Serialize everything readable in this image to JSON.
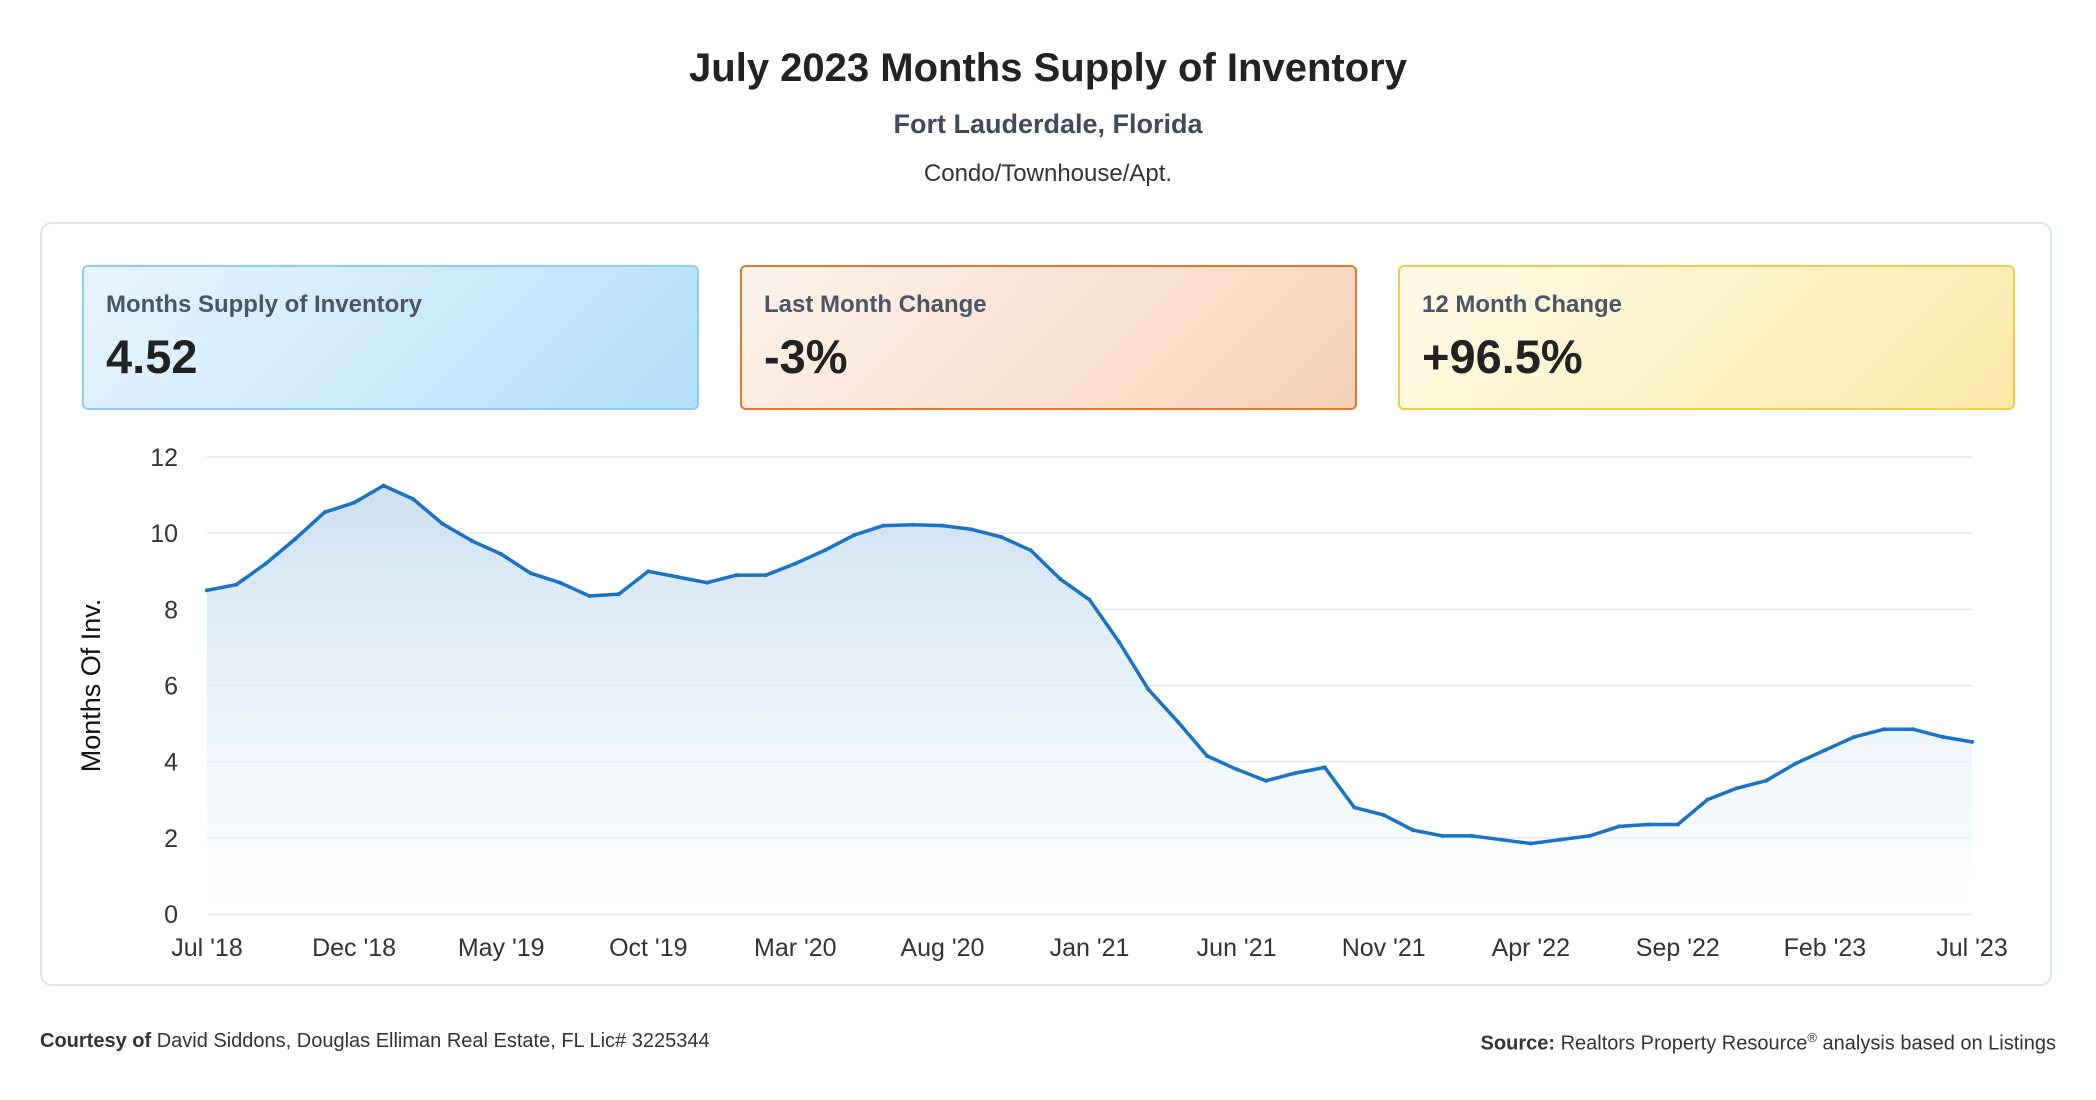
{
  "header": {
    "title": "July 2023 Months Supply of Inventory",
    "location": "Fort Lauderdale, Florida",
    "segment": "Condo/Townhouse/Apt."
  },
  "cards": [
    {
      "label": "Months Supply of Inventory",
      "value": "4.52"
    },
    {
      "label": "Last Month Change",
      "value": "-3%"
    },
    {
      "label": "12 Month Change",
      "value": "+96.5%"
    }
  ],
  "colors": {
    "line": "#1a73c5",
    "fill_top": "#c9dff0",
    "grid": "#e3e6ee"
  },
  "chart_data": {
    "type": "area",
    "title": "",
    "ylabel": "Months Of Inv.",
    "xlabel": "",
    "ylim": [
      0,
      12
    ],
    "yticks": [
      "0",
      "2",
      "4",
      "6",
      "8",
      "10",
      "12"
    ],
    "xtick_labels": [
      "Jul '18",
      "Dec '18",
      "May '19",
      "Oct '19",
      "Mar '20",
      "Aug '20",
      "Jan '21",
      "Jun '21",
      "Nov '21",
      "Apr '22",
      "Sep '22",
      "Feb '23",
      "Jul '23"
    ],
    "grid": true,
    "x": [
      "Jul '18",
      "Aug '18",
      "Sep '18",
      "Oct '18",
      "Nov '18",
      "Dec '18",
      "Jan '19",
      "Feb '19",
      "Mar '19",
      "Apr '19",
      "May '19",
      "Jun '19",
      "Jul '19",
      "Aug '19",
      "Sep '19",
      "Oct '19",
      "Nov '19",
      "Dec '19",
      "Jan '20",
      "Feb '20",
      "Mar '20",
      "Apr '20",
      "May '20",
      "Jun '20",
      "Jul '20",
      "Aug '20",
      "Sep '20",
      "Oct '20",
      "Nov '20",
      "Dec '20",
      "Jan '21",
      "Feb '21",
      "Mar '21",
      "Apr '21",
      "May '21",
      "Jun '21",
      "Jul '21",
      "Aug '21",
      "Sep '21",
      "Oct '21",
      "Nov '21",
      "Dec '21",
      "Jan '22",
      "Feb '22",
      "Mar '22",
      "Apr '22",
      "May '22",
      "Jun '22",
      "Jul '22",
      "Aug '22",
      "Sep '22",
      "Oct '22",
      "Nov '22",
      "Dec '22",
      "Jan '23",
      "Feb '23",
      "Mar '23",
      "Apr '23",
      "May '23",
      "Jun '23",
      "Jul '23"
    ],
    "series": [
      {
        "values": [
          8.5,
          8.65,
          9.2,
          9.85,
          10.55,
          10.8,
          11.25,
          10.9,
          10.25,
          9.8,
          9.45,
          8.95,
          8.7,
          8.35,
          8.4,
          9.0,
          8.85,
          8.7,
          8.9,
          8.9,
          9.2,
          9.55,
          9.95,
          10.2,
          10.22,
          10.2,
          10.1,
          9.9,
          9.55,
          8.8,
          8.25,
          7.15,
          5.9,
          5.05,
          4.15,
          3.8,
          3.5,
          3.7,
          3.85,
          2.8,
          2.6,
          2.2,
          2.05,
          2.05,
          1.95,
          1.85,
          1.95,
          2.05,
          2.3,
          2.35,
          2.35,
          3.0,
          3.3,
          3.5,
          3.95,
          4.3,
          4.65,
          4.85,
          4.85,
          4.65,
          4.52
        ]
      }
    ]
  },
  "footer": {
    "courtesy_label": "Courtesy of",
    "courtesy_text": "David Siddons, Douglas Elliman Real Estate, FL Lic# 3225344",
    "source_label": "Source:",
    "source_text": "Realtors Property Resource",
    "source_mark": "®",
    "source_suffix": "analysis based on Listings"
  }
}
